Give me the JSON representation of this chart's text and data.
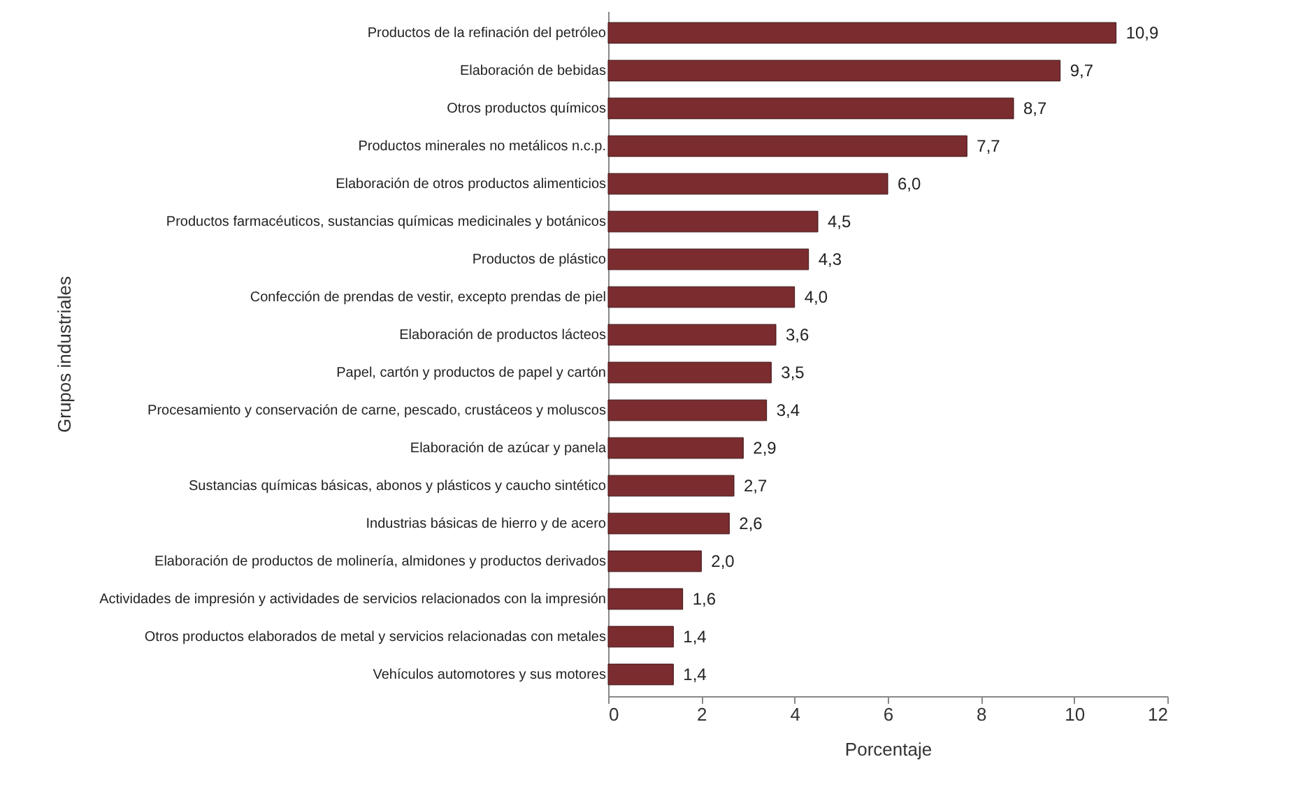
{
  "chart_data": {
    "type": "bar",
    "orientation": "horizontal",
    "xlabel": "Porcentaje",
    "ylabel": "Grupos industriales",
    "categories": [
      "Productos de la refinación del petróleo",
      "Elaboración de bebidas",
      "Otros productos químicos",
      "Productos minerales no metálicos n.c.p.",
      "Elaboración de otros productos alimenticios",
      "Productos farmacéuticos, sustancias químicas medicinales y botánicos",
      "Productos de plástico",
      "Confección de prendas de vestir, excepto prendas de piel",
      "Elaboración de productos lácteos",
      "Papel, cartón y productos de papel y cartón",
      "Procesamiento y conservación de carne, pescado, crustáceos y moluscos",
      "Elaboración de azúcar y panela",
      "Sustancias químicas básicas, abonos y  plásticos y caucho sintético",
      "Industrias básicas de hierro y de acero",
      "Elaboración de productos de molinería, almidones y productos derivados",
      "Actividades de impresión y actividades de servicios relacionados con la impresión",
      "Otros productos elaborados de metal y servicios relacionadas con metales",
      "Vehículos automotores y sus motores"
    ],
    "values": [
      10.9,
      9.7,
      8.7,
      7.7,
      6.0,
      4.5,
      4.3,
      4.0,
      3.6,
      3.5,
      3.4,
      2.9,
      2.7,
      2.6,
      2.0,
      1.6,
      1.4,
      1.4
    ],
    "value_labels": [
      "10,9",
      "9,7",
      "8,7",
      "7,7",
      "6,0",
      "4,5",
      "4,3",
      "4,0",
      "3,6",
      "3,5",
      "3,4",
      "2,9",
      "2,7",
      "2,6",
      "2,0",
      "1,6",
      "1,4",
      "1,4"
    ],
    "color": "#7b2c2f",
    "xlim": [
      0,
      12
    ],
    "xticks": [
      0,
      2,
      4,
      6,
      8,
      10,
      12
    ],
    "grid": false
  }
}
